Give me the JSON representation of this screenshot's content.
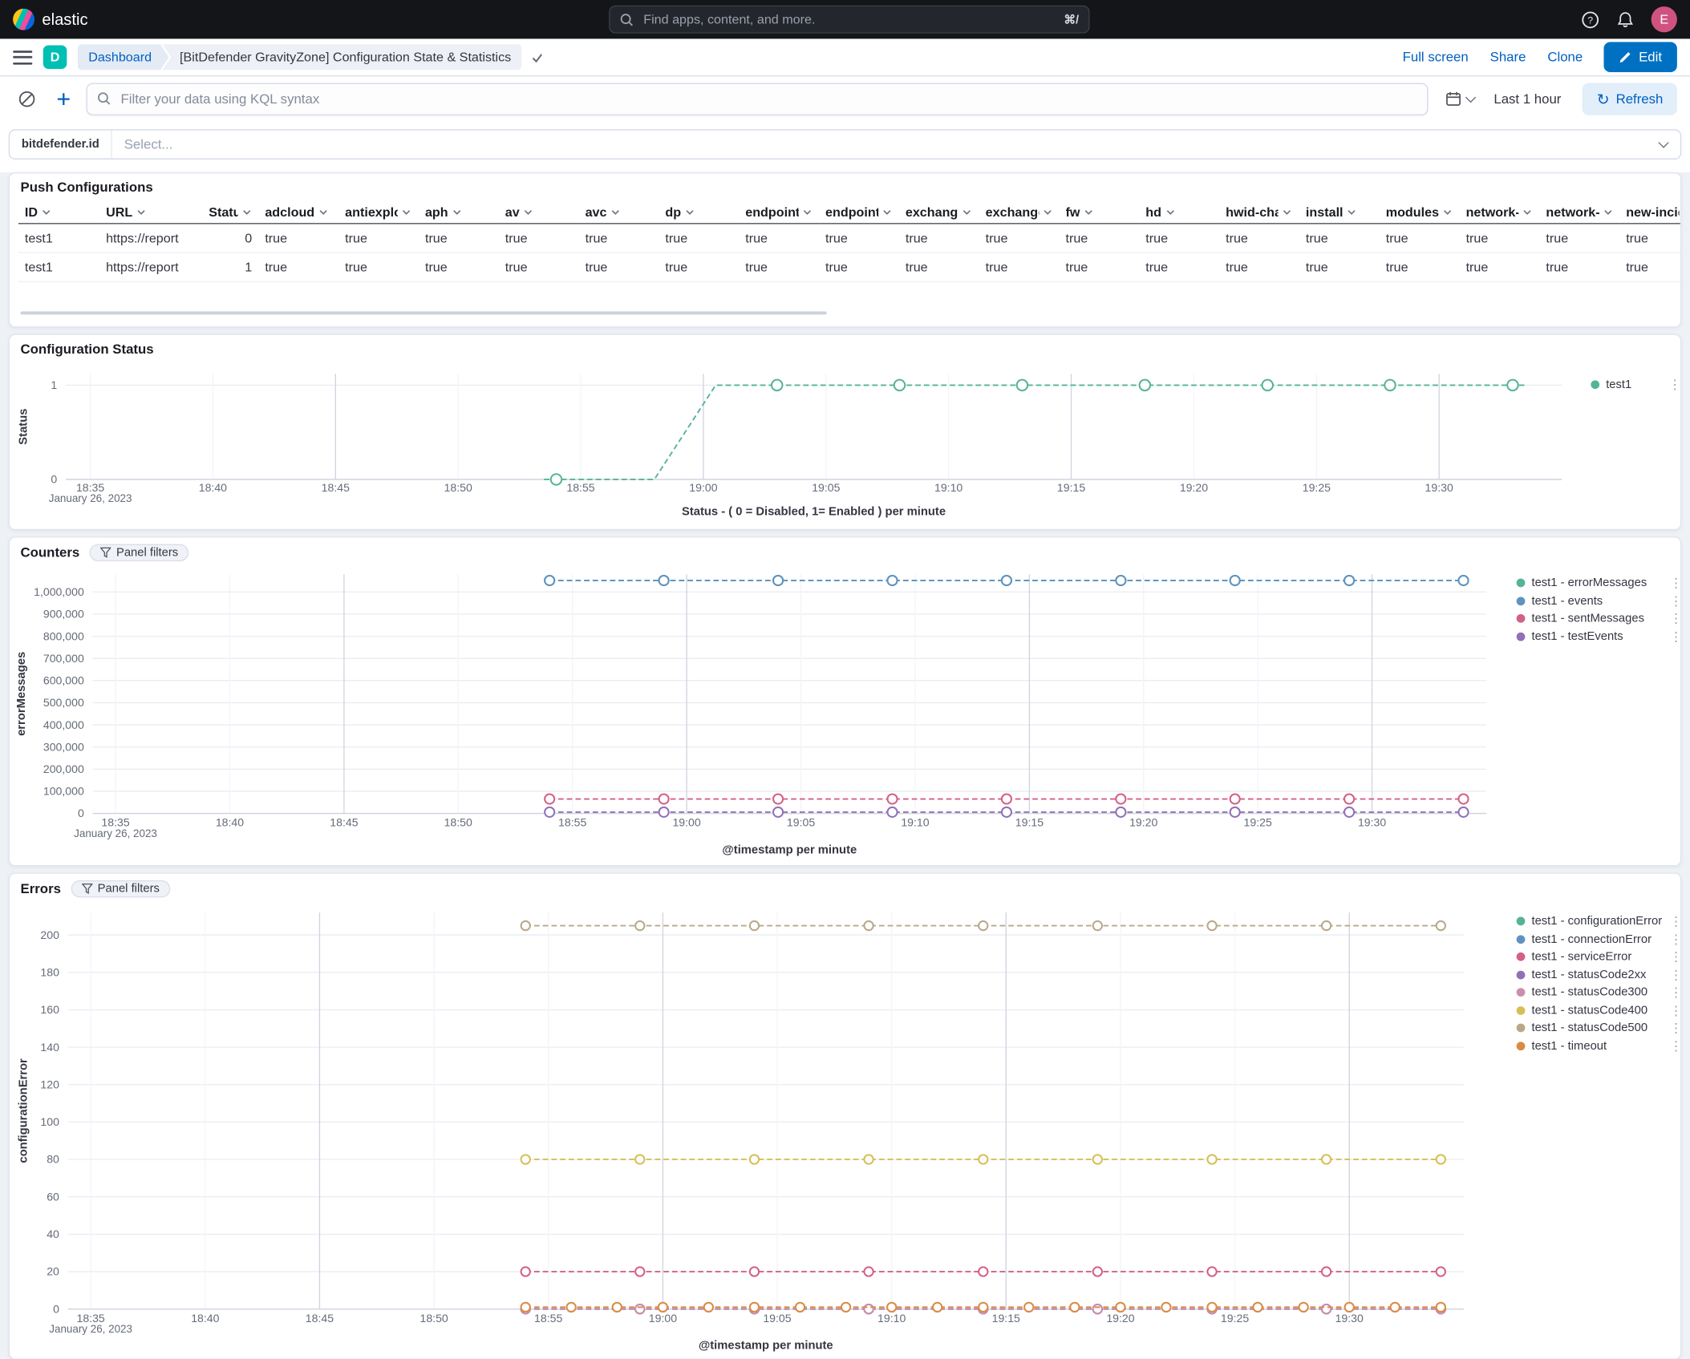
{
  "icons": {
    "kebab": "⋮"
  },
  "colors": {
    "primary_button": "#0071C2",
    "link": "#0061C2",
    "topbar_background": "#141519",
    "space_badge": "#00BFB3",
    "page_background": "#EEF1F6"
  },
  "topbar": {
    "brand": "elastic",
    "search_placeholder": "Find apps, content, and more.",
    "search_shortcut": "⌘/"
  },
  "header": {
    "space_badge": "D",
    "breadcrumb_root": "Dashboard",
    "breadcrumb_current": "[BitDefender GravityZone] Configuration State & Statistics",
    "actions": [
      "Full screen",
      "Share",
      "Clone"
    ],
    "edit_label": "Edit"
  },
  "querybar": {
    "kql_placeholder": "Filter your data using KQL syntax",
    "time_range": "Last 1 hour",
    "refresh_label": "Refresh"
  },
  "control": {
    "label": "bitdefender.id",
    "placeholder": "Select..."
  },
  "push_config": {
    "title": "Push Configurations",
    "columns": [
      "ID",
      "URL",
      "Status",
      "adcloud",
      "antiexploit",
      "aph",
      "av",
      "avc",
      "dp",
      "endpoint-r",
      "endpoint-r",
      "exchange-",
      "exchange-",
      "fw",
      "hd",
      "hwid-chan",
      "install",
      "modules",
      "network-m",
      "network-s",
      "new-incid"
    ],
    "rows": [
      [
        "test1",
        "https://report",
        "0",
        "true",
        "true",
        "true",
        "true",
        "true",
        "true",
        "true",
        "true",
        "true",
        "true",
        "true",
        "true",
        "true",
        "true",
        "true",
        "true",
        "true",
        "true"
      ],
      [
        "test1",
        "https://report",
        "1",
        "true",
        "true",
        "true",
        "true",
        "true",
        "true",
        "true",
        "true",
        "true",
        "true",
        "true",
        "true",
        "true",
        "true",
        "true",
        "true",
        "true",
        "true"
      ]
    ]
  },
  "chart_data": [
    {
      "id": "config-status",
      "type": "line",
      "panel_title": "Configuration Status",
      "xlabel": "Status - ( 0 = Disabled, 1= Enabled ) per minute",
      "ylabel": "Status",
      "date_label": "January 26, 2023",
      "x_domain": [
        1114,
        1175
      ],
      "x_ticks": [
        {
          "m": 1115,
          "label": "18:35"
        },
        {
          "m": 1120,
          "label": "18:40"
        },
        {
          "m": 1125,
          "label": "18:45"
        },
        {
          "m": 1130,
          "label": "18:50"
        },
        {
          "m": 1135,
          "label": "18:55"
        },
        {
          "m": 1140,
          "label": "19:00"
        },
        {
          "m": 1145,
          "label": "19:05"
        },
        {
          "m": 1150,
          "label": "19:10"
        },
        {
          "m": 1155,
          "label": "19:15"
        },
        {
          "m": 1160,
          "label": "19:20"
        },
        {
          "m": 1165,
          "label": "19:25"
        },
        {
          "m": 1170,
          "label": "19:30"
        }
      ],
      "x_major": [
        1125,
        1140,
        1155,
        1170
      ],
      "y_domain": [
        0,
        1.12
      ],
      "y_ticks": [
        {
          "v": 0,
          "label": "0"
        },
        {
          "v": 1,
          "label": "1"
        }
      ],
      "marker_minutes": [
        1134,
        1139,
        1144,
        1149,
        1154,
        1159,
        1164,
        1169,
        1174
      ],
      "series": [
        {
          "name": "test1",
          "color": "#54B399",
          "path": [
            [
              1133.5,
              0
            ],
            [
              1138,
              0
            ],
            [
              1140.5,
              1
            ],
            [
              1173.5,
              1
            ]
          ],
          "markers": [
            [
              1134,
              0
            ],
            [
              1143,
              1
            ],
            [
              1148,
              1
            ],
            [
              1153,
              1
            ],
            [
              1158,
              1
            ],
            [
              1163,
              1
            ],
            [
              1168,
              1
            ],
            [
              1173,
              1
            ]
          ]
        }
      ]
    },
    {
      "id": "counters",
      "type": "line",
      "panel_title": "Counters",
      "filters_label": "Panel filters",
      "xlabel": "@timestamp per minute",
      "ylabel": "errorMessages",
      "date_label": "January 26, 2023",
      "x_domain": [
        1114,
        1175
      ],
      "x_ticks": [
        {
          "m": 1115,
          "label": "18:35"
        },
        {
          "m": 1120,
          "label": "18:40"
        },
        {
          "m": 1125,
          "label": "18:45"
        },
        {
          "m": 1130,
          "label": "18:50"
        },
        {
          "m": 1135,
          "label": "18:55"
        },
        {
          "m": 1140,
          "label": "19:00"
        },
        {
          "m": 1145,
          "label": "19:05"
        },
        {
          "m": 1150,
          "label": "19:10"
        },
        {
          "m": 1155,
          "label": "19:15"
        },
        {
          "m": 1160,
          "label": "19:20"
        },
        {
          "m": 1165,
          "label": "19:25"
        },
        {
          "m": 1170,
          "label": "19:30"
        }
      ],
      "x_major": [
        1125,
        1140,
        1155,
        1170
      ],
      "y_domain": [
        0,
        1080000
      ],
      "y_ticks": [
        {
          "v": 0,
          "label": "0"
        },
        {
          "v": 100000,
          "label": "100,000"
        },
        {
          "v": 200000,
          "label": "200,000"
        },
        {
          "v": 300000,
          "label": "300,000"
        },
        {
          "v": 400000,
          "label": "400,000"
        },
        {
          "v": 500000,
          "label": "500,000"
        },
        {
          "v": 600000,
          "label": "600,000"
        },
        {
          "v": 700000,
          "label": "700,000"
        },
        {
          "v": 800000,
          "label": "800,000"
        },
        {
          "v": 900000,
          "label": "900,000"
        },
        {
          "v": 1000000,
          "label": "1,000,000"
        }
      ],
      "marker_minutes": [
        1134,
        1139,
        1144,
        1149,
        1154,
        1159,
        1164,
        1169,
        1174
      ],
      "series": [
        {
          "name": "test1 - errorMessages",
          "color": "#54B399",
          "value": 1052000
        },
        {
          "name": "test1 - events",
          "color": "#6092C0",
          "value": 1052000
        },
        {
          "name": "test1 - sentMessages",
          "color": "#D36086",
          "value": 65000
        },
        {
          "name": "test1 - testEvents",
          "color": "#9170B8",
          "value": 6000
        }
      ]
    },
    {
      "id": "errors",
      "type": "line",
      "panel_title": "Errors",
      "filters_label": "Panel filters",
      "xlabel": "@timestamp per minute",
      "ylabel": "configurationError",
      "date_label": "January 26, 2023",
      "x_domain": [
        1114,
        1175
      ],
      "x_ticks": [
        {
          "m": 1115,
          "label": "18:35"
        },
        {
          "m": 1120,
          "label": "18:40"
        },
        {
          "m": 1125,
          "label": "18:45"
        },
        {
          "m": 1130,
          "label": "18:50"
        },
        {
          "m": 1135,
          "label": "18:55"
        },
        {
          "m": 1140,
          "label": "19:00"
        },
        {
          "m": 1145,
          "label": "19:05"
        },
        {
          "m": 1150,
          "label": "19:10"
        },
        {
          "m": 1155,
          "label": "19:15"
        },
        {
          "m": 1160,
          "label": "19:20"
        },
        {
          "m": 1165,
          "label": "19:25"
        },
        {
          "m": 1170,
          "label": "19:30"
        }
      ],
      "x_major": [
        1125,
        1140,
        1155,
        1170
      ],
      "y_domain": [
        0,
        212
      ],
      "y_ticks": [
        {
          "v": 0,
          "label": "0"
        },
        {
          "v": 20,
          "label": "20"
        },
        {
          "v": 40,
          "label": "40"
        },
        {
          "v": 60,
          "label": "60"
        },
        {
          "v": 80,
          "label": "80"
        },
        {
          "v": 100,
          "label": "100"
        },
        {
          "v": 120,
          "label": "120"
        },
        {
          "v": 140,
          "label": "140"
        },
        {
          "v": 160,
          "label": "160"
        },
        {
          "v": 180,
          "label": "180"
        },
        {
          "v": 200,
          "label": "200"
        }
      ],
      "marker_minutes": [
        1134,
        1139,
        1144,
        1149,
        1154,
        1159,
        1164,
        1169,
        1174
      ],
      "series": [
        {
          "name": "test1 - configurationError",
          "color": "#54B399",
          "value": 0
        },
        {
          "name": "test1 - connectionError",
          "color": "#6092C0",
          "value": 0
        },
        {
          "name": "test1 - serviceError",
          "color": "#D36086",
          "value": 20
        },
        {
          "name": "test1 - statusCode2xx",
          "color": "#9170B8",
          "value": 0
        },
        {
          "name": "test1 - statusCode300",
          "color": "#CA8EAE",
          "value": 0
        },
        {
          "name": "test1 - statusCode400",
          "color": "#D6BF57",
          "value": 80
        },
        {
          "name": "test1 - statusCode500",
          "color": "#B9A888",
          "value": 205
        },
        {
          "name": "test1 - timeout",
          "color": "#DA8B45",
          "value": 1,
          "markers": [
            [
              1134,
              1
            ],
            [
              1136,
              1
            ],
            [
              1138,
              1
            ],
            [
              1140,
              1
            ],
            [
              1142,
              1
            ],
            [
              1144,
              1
            ],
            [
              1146,
              1
            ],
            [
              1148,
              1
            ],
            [
              1150,
              1
            ],
            [
              1152,
              1
            ],
            [
              1154,
              1
            ],
            [
              1156,
              1
            ],
            [
              1158,
              1
            ],
            [
              1160,
              1
            ],
            [
              1162,
              1
            ],
            [
              1164,
              1
            ],
            [
              1166,
              1
            ],
            [
              1168,
              1
            ],
            [
              1170,
              1
            ],
            [
              1172,
              1
            ],
            [
              1174,
              1
            ]
          ]
        }
      ]
    }
  ]
}
